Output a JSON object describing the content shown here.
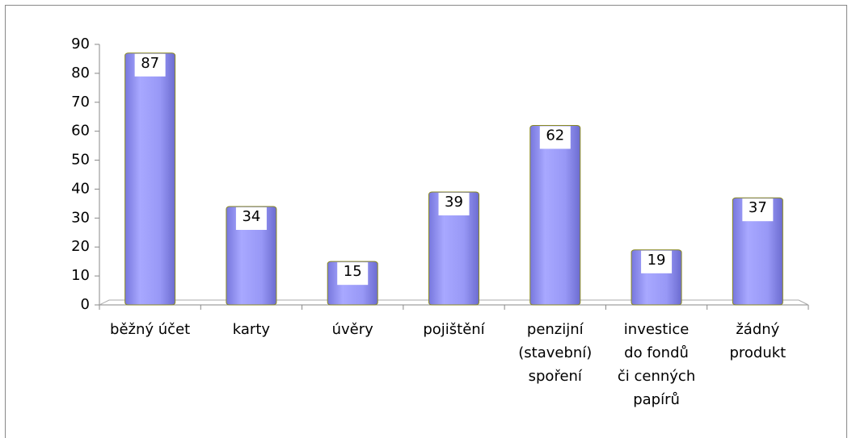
{
  "chart_data": {
    "type": "bar",
    "categories": [
      "běžný účet",
      "karty",
      "úvěry",
      "pojištění",
      "penzijní\n(stavební)\nspoření",
      "investice\ndo fondů\nči cenných\npapírů",
      "žádný\nprodukt"
    ],
    "values": [
      87,
      34,
      15,
      39,
      62,
      19,
      37
    ],
    "color": "#9999ff",
    "ylim": [
      0,
      90
    ],
    "yticks": [
      0,
      10,
      20,
      30,
      40,
      50,
      60,
      70,
      80,
      90
    ]
  }
}
